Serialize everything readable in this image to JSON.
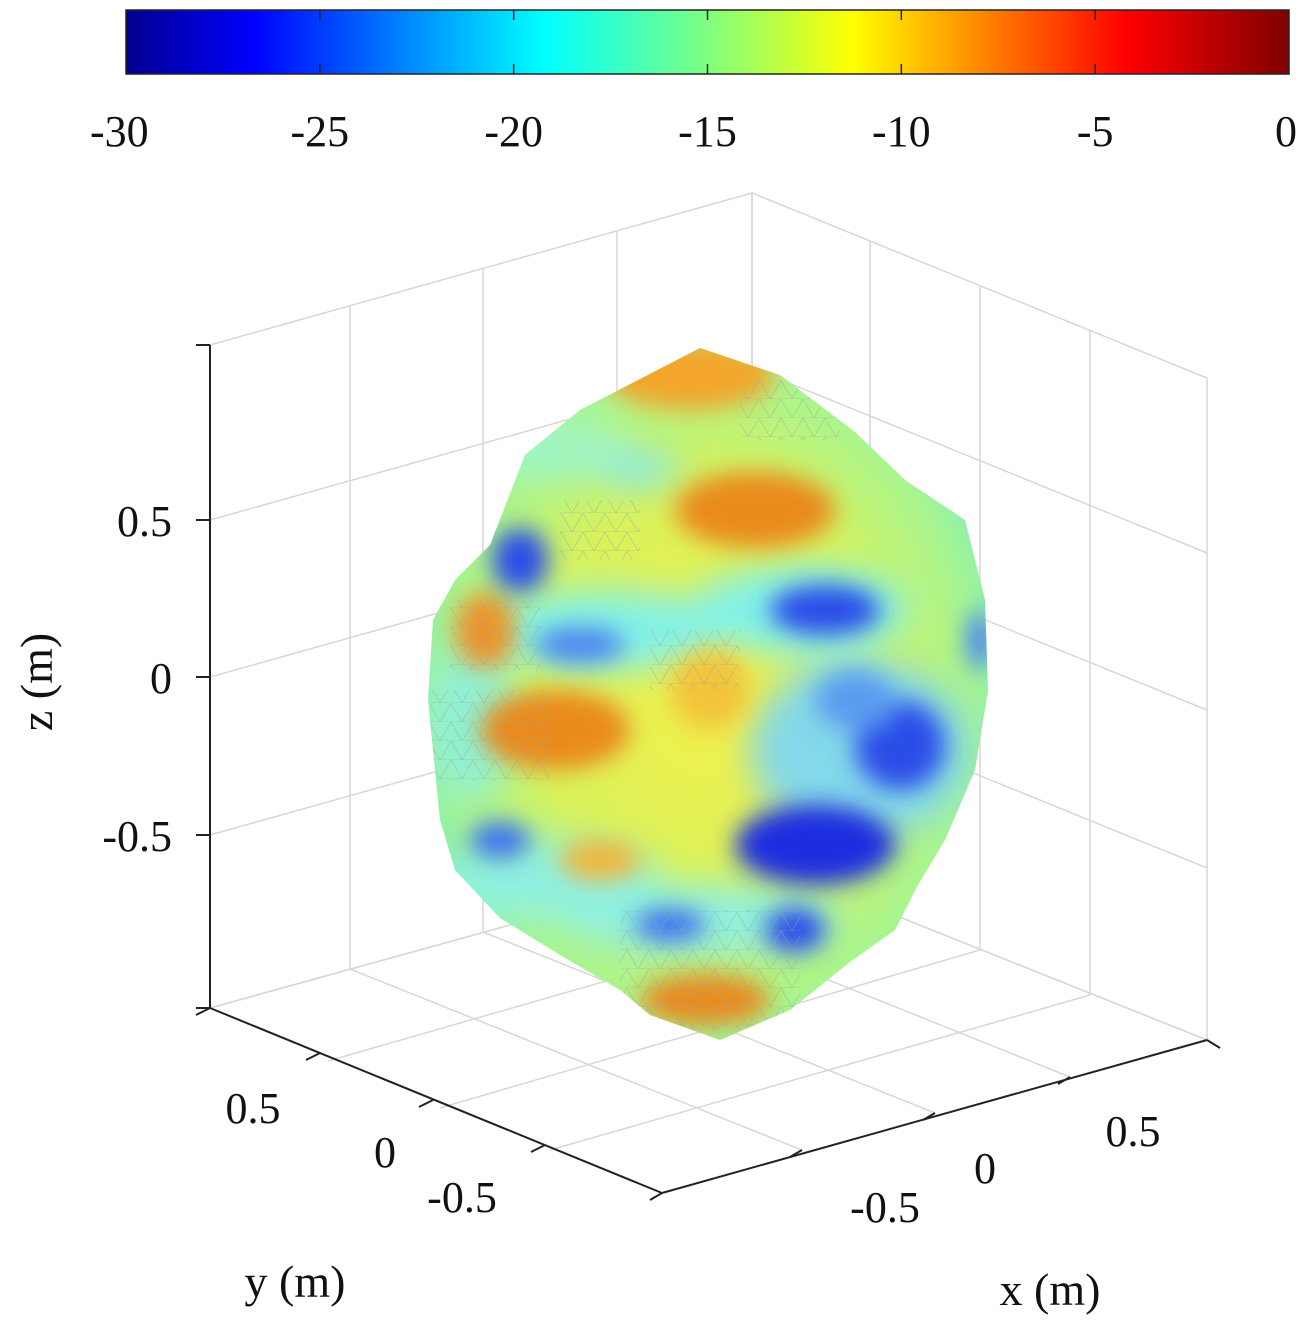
{
  "chart_data": {
    "type": "surface3d",
    "title": "",
    "colormap": "jet",
    "colorbar": {
      "orientation": "horizontal",
      "placement": "top",
      "range": [
        -30,
        0
      ],
      "ticks": [
        -30,
        -25,
        -20,
        -15,
        -10,
        -5,
        0
      ],
      "tick_labels": [
        "-30",
        "-25",
        "-20",
        "-15",
        "-10",
        "-5",
        "0"
      ]
    },
    "axes": {
      "x": {
        "label": "x (m)",
        "range": [
          -1,
          1
        ],
        "ticks": [
          -0.5,
          0,
          0.5
        ],
        "tick_labels": [
          "-0.5",
          "0",
          "0.5"
        ]
      },
      "y": {
        "label": "y (m)",
        "range": [
          -1,
          1
        ],
        "ticks": [
          0.5,
          0,
          -0.5
        ],
        "tick_labels": [
          "0.5",
          "0",
          "-0.5"
        ]
      },
      "z": {
        "label": "z (m)",
        "range": [
          -1,
          1
        ],
        "ticks": [
          0.5,
          0,
          -0.5
        ],
        "tick_labels": [
          "0.5",
          "0",
          "-0.5"
        ]
      }
    },
    "grid": true,
    "shape": "irregular sphere (radius ≈ 0.9 m)",
    "color_patches": [
      {
        "value": -8,
        "desc": "orange"
      },
      {
        "value": -8,
        "desc": "orange"
      },
      {
        "value": -8,
        "desc": "orange"
      },
      {
        "value": -7,
        "desc": "orange"
      },
      {
        "value": -8,
        "desc": "orange"
      },
      {
        "value": -26,
        "desc": "blue"
      },
      {
        "value": -26,
        "desc": "blue"
      },
      {
        "value": -27,
        "desc": "blue"
      },
      {
        "value": -26,
        "desc": "blue"
      },
      {
        "value": -23,
        "desc": "light blue"
      },
      {
        "value": -20,
        "desc": "cyan"
      },
      {
        "value": -20,
        "desc": "cyan"
      },
      {
        "value": -25,
        "desc": "blue"
      }
    ]
  }
}
